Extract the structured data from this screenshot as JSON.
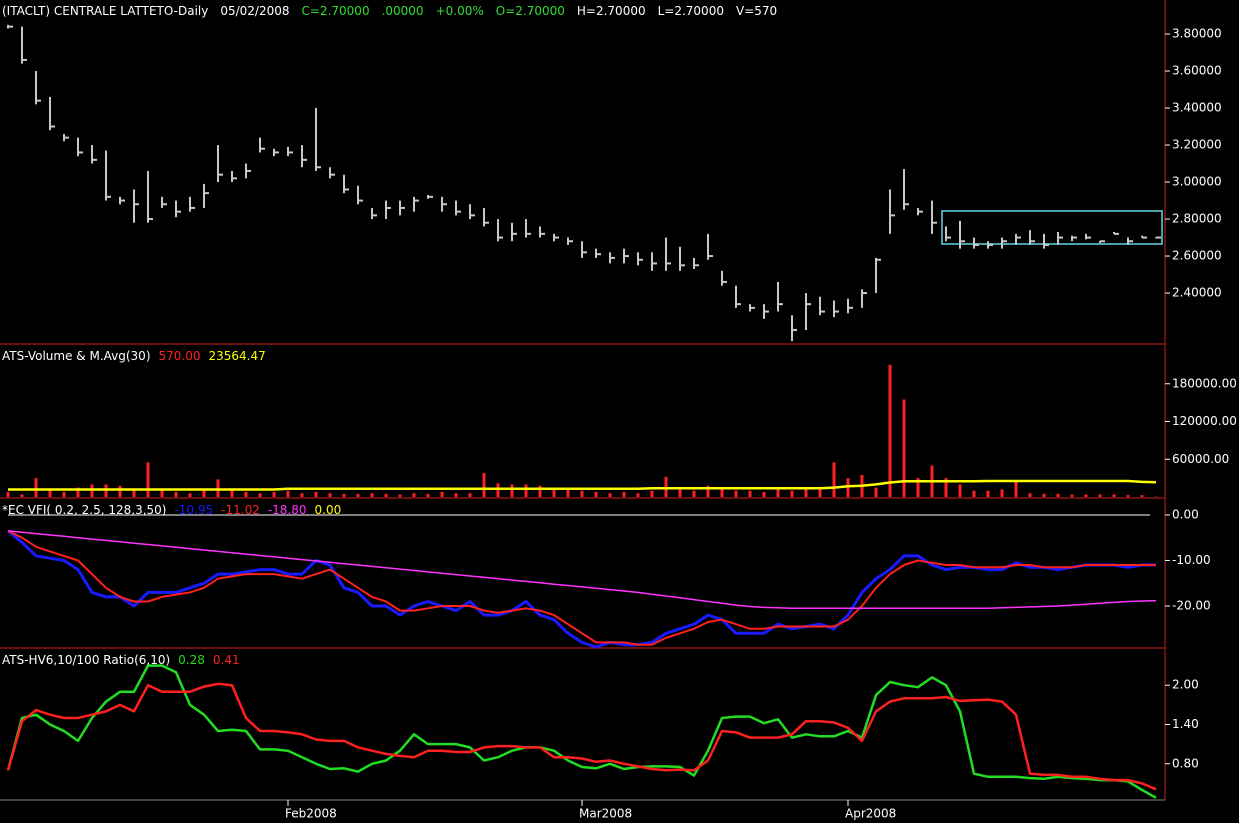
{
  "chart_data": [
    {
      "type": "ohlc",
      "color": "#c8c8c8",
      "header": [
        {
          "text": "(ITACLT) CENTRALE LATTETO-Daily",
          "color": "#ffffff"
        },
        {
          "text": "05/02/2008",
          "color": "#ffffff"
        },
        {
          "text": "C=2.70000",
          "color": "#33dd33"
        },
        {
          "text": ".00000",
          "color": "#33dd33"
        },
        {
          "text": "+0.00%",
          "color": "#33dd33"
        },
        {
          "text": "O=2.70000",
          "color": "#33dd33"
        },
        {
          "text": "H=2.70000",
          "color": "#ffffff"
        },
        {
          "text": "L=2.70000",
          "color": "#ffffff"
        },
        {
          "text": "V=570",
          "color": "#ffffff"
        }
      ],
      "high": [
        3.85,
        3.84,
        3.6,
        3.46,
        3.26,
        3.24,
        3.2,
        3.17,
        2.92,
        2.96,
        3.06,
        2.92,
        2.9,
        2.92,
        2.99,
        3.2,
        3.06,
        3.1,
        3.24,
        3.18,
        3.19,
        3.2,
        3.4,
        3.08,
        3.04,
        2.98,
        2.86,
        2.9,
        2.9,
        2.92,
        2.93,
        2.92,
        2.9,
        2.88,
        2.86,
        2.8,
        2.78,
        2.8,
        2.76,
        2.72,
        2.7,
        2.68,
        2.64,
        2.62,
        2.64,
        2.62,
        2.62,
        2.7,
        2.65,
        2.59,
        2.72,
        2.52,
        2.44,
        2.34,
        2.34,
        2.46,
        2.28,
        2.4,
        2.38,
        2.36,
        2.37,
        2.42,
        2.59,
        2.96,
        3.07,
        2.86,
        2.9,
        2.76,
        2.79,
        2.7,
        2.68,
        2.7,
        2.72,
        2.74,
        2.72,
        2.73,
        2.71,
        2.72,
        2.68,
        2.73,
        2.7,
        2.71,
        2.7
      ],
      "low": [
        3.83,
        3.64,
        3.42,
        3.28,
        3.22,
        3.14,
        3.1,
        2.9,
        2.88,
        2.78,
        2.78,
        2.86,
        2.81,
        2.84,
        2.86,
        3.0,
        3.0,
        3.02,
        3.16,
        3.14,
        3.14,
        3.08,
        3.06,
        3.02,
        2.94,
        2.88,
        2.8,
        2.8,
        2.82,
        2.84,
        2.91,
        2.84,
        2.82,
        2.8,
        2.76,
        2.68,
        2.68,
        2.7,
        2.7,
        2.68,
        2.66,
        2.59,
        2.59,
        2.56,
        2.56,
        2.55,
        2.52,
        2.52,
        2.52,
        2.53,
        2.58,
        2.44,
        2.32,
        2.3,
        2.26,
        2.3,
        2.14,
        2.2,
        2.28,
        2.27,
        2.29,
        2.32,
        2.4,
        2.72,
        2.85,
        2.82,
        2.72,
        2.68,
        2.64,
        2.64,
        2.64,
        2.64,
        2.66,
        2.66,
        2.64,
        2.66,
        2.68,
        2.69,
        2.67,
        2.72,
        2.66,
        2.7,
        2.7
      ],
      "close": [
        3.84,
        3.66,
        3.44,
        3.3,
        3.24,
        3.16,
        3.12,
        2.92,
        2.9,
        2.88,
        2.8,
        2.88,
        2.84,
        2.86,
        2.94,
        3.04,
        3.02,
        3.06,
        3.18,
        3.16,
        3.16,
        3.12,
        3.08,
        3.04,
        2.96,
        2.9,
        2.82,
        2.86,
        2.86,
        2.9,
        2.92,
        2.88,
        2.84,
        2.82,
        2.78,
        2.7,
        2.72,
        2.72,
        2.72,
        2.7,
        2.68,
        2.62,
        2.61,
        2.59,
        2.6,
        2.58,
        2.56,
        2.56,
        2.55,
        2.55,
        2.6,
        2.46,
        2.34,
        2.32,
        2.3,
        2.34,
        2.2,
        2.34,
        2.3,
        2.3,
        2.32,
        2.4,
        2.58,
        2.82,
        2.88,
        2.84,
        2.78,
        2.7,
        2.68,
        2.66,
        2.66,
        2.68,
        2.7,
        2.68,
        2.66,
        2.7,
        2.7,
        2.7,
        2.68,
        2.72,
        2.68,
        2.7,
        2.7
      ],
      "ylim": [
        2.13,
        3.984
      ],
      "yticks": [
        {
          "value": 2.4,
          "label": "2.40000"
        },
        {
          "value": 2.6,
          "label": "2.60000"
        },
        {
          "value": 2.8,
          "label": "2.80000"
        },
        {
          "value": 3.0,
          "label": "3.00000"
        },
        {
          "value": 3.2,
          "label": "3.20000"
        },
        {
          "value": 3.4,
          "label": "3.40000"
        },
        {
          "value": 3.6,
          "label": "3.60000"
        },
        {
          "value": 3.8,
          "label": "3.80000"
        }
      ]
    },
    {
      "type": "volume",
      "title": "ATS-Volume & M.Avg(30)",
      "series": [
        {
          "kind": "bar",
          "legend": "570.00",
          "color": "#ff2020",
          "values": [
            8000,
            4000,
            30000,
            12000,
            8000,
            15000,
            20000,
            20000,
            18000,
            12000,
            55000,
            12000,
            8000,
            6000,
            10000,
            28000,
            12000,
            8000,
            6000,
            8000,
            10000,
            6000,
            8000,
            6000,
            5000,
            5000,
            6000,
            5000,
            4000,
            6000,
            5000,
            8000,
            6000,
            6000,
            38000,
            22000,
            20000,
            20000,
            18000,
            15000,
            12000,
            10000,
            8000,
            6000,
            8000,
            6000,
            10000,
            32000,
            12000,
            10000,
            18000,
            15000,
            10000,
            10000,
            8000,
            12000,
            10000,
            15000,
            12000,
            55000,
            30000,
            35000,
            15000,
            210000,
            155000,
            30000,
            50000,
            30000,
            20000,
            10000,
            10000,
            12000,
            25000,
            6000,
            5000,
            5000,
            4000,
            4000,
            4000,
            4000,
            3000,
            3000,
            570
          ]
        },
        {
          "kind": "line",
          "legend": "23564.47",
          "color": "#ffff00",
          "values": [
            12000,
            12000,
            12000,
            12000,
            12000,
            12000,
            12000,
            12000,
            12000,
            12000,
            12000,
            12000,
            12000,
            12000,
            12000,
            12000,
            12000,
            12000,
            12000,
            12000,
            13000,
            13000,
            13000,
            13000,
            13000,
            13000,
            13000,
            13000,
            13000,
            13000,
            13000,
            13000,
            13000,
            13000,
            13000,
            13000,
            13000,
            13000,
            13000,
            13000,
            13000,
            13000,
            13000,
            13000,
            13000,
            13000,
            14000,
            14000,
            14000,
            14000,
            14000,
            14000,
            14000,
            14000,
            14000,
            14000,
            14000,
            14000,
            14000,
            15000,
            17000,
            18000,
            20000,
            23000,
            25000,
            25000,
            25000,
            25000,
            25000,
            25000,
            25500,
            25500,
            25500,
            25500,
            25500,
            25500,
            25500,
            25500,
            25500,
            25500,
            25500,
            24000,
            23564.47
          ]
        }
      ],
      "ylim": [
        0,
        241600
      ],
      "yticks": [
        {
          "value": 60000,
          "label": "60000.00"
        },
        {
          "value": 120000,
          "label": "120000.00"
        },
        {
          "value": 180000,
          "label": "180000.00"
        }
      ]
    },
    {
      "type": "line",
      "title": "*EC VFI( 0.2, 2.5, 128,3,50)",
      "series": [
        {
          "legend": "-10.95",
          "color": "#1a1aff",
          "width": 3,
          "values": [
            -3.5,
            -6,
            -9,
            -9.5,
            -10,
            -12,
            -17,
            -18,
            -18,
            -20,
            -17,
            -17,
            -17,
            -16,
            -15,
            -13,
            -13,
            -12.5,
            -12,
            -12,
            -13,
            -13,
            -10,
            -11,
            -16,
            -17,
            -20,
            -20,
            -22,
            -20,
            -19,
            -20,
            -21,
            -19,
            -22,
            -22,
            -21,
            -19,
            -22,
            -23,
            -26,
            -28,
            -29,
            -28,
            -28.5,
            -28.5,
            -28,
            -26,
            -25,
            -24,
            -22,
            -23,
            -26,
            -26,
            -26,
            -24,
            -25,
            -24.5,
            -24,
            -25,
            -22,
            -17,
            -14,
            -12,
            -9,
            -9,
            -11,
            -12,
            -11.5,
            -11.5,
            -12,
            -12,
            -10.5,
            -11.5,
            -11.5,
            -12,
            -11.5,
            -11,
            -11,
            -11,
            -11.5,
            -11,
            -10.95
          ]
        },
        {
          "legend": "-11.02",
          "color": "#ff2020",
          "width": 2,
          "values": [
            -3.5,
            -5,
            -7,
            -8,
            -9,
            -10,
            -13,
            -16,
            -18,
            -19,
            -19,
            -18,
            -17.5,
            -17,
            -16,
            -14,
            -13.5,
            -13,
            -13,
            -13,
            -13.5,
            -14,
            -13,
            -12,
            -14,
            -16,
            -18,
            -19,
            -21,
            -21,
            -20.5,
            -20,
            -20,
            -20,
            -21,
            -21.5,
            -21,
            -20.5,
            -21,
            -22,
            -24,
            -26,
            -28,
            -28,
            -28,
            -28.5,
            -28.5,
            -27,
            -26,
            -25,
            -23.5,
            -23,
            -24,
            -25,
            -25,
            -24.5,
            -24.5,
            -24.5,
            -24.5,
            -24.5,
            -23,
            -20,
            -16,
            -13,
            -11,
            -10,
            -10.5,
            -11,
            -11,
            -11.5,
            -11.5,
            -11.5,
            -11,
            -11,
            -11.5,
            -11.5,
            -11.5,
            -11,
            -11,
            -11,
            -11,
            -11,
            -11.02
          ]
        },
        {
          "legend": "-18.80",
          "color": "#ff33ff",
          "width": 1.5,
          "values": [
            -3.5,
            -3.8,
            -4.1,
            -4.4,
            -4.7,
            -5,
            -5.3,
            -5.6,
            -5.9,
            -6.2,
            -6.5,
            -6.8,
            -7.1,
            -7.4,
            -7.7,
            -8,
            -8.3,
            -8.6,
            -8.9,
            -9.2,
            -9.5,
            -9.8,
            -10.1,
            -10.4,
            -10.7,
            -11,
            -11.3,
            -11.6,
            -11.9,
            -12.2,
            -12.5,
            -12.8,
            -13.1,
            -13.4,
            -13.7,
            -14,
            -14.3,
            -14.6,
            -14.9,
            -15.2,
            -15.5,
            -15.8,
            -16.1,
            -16.4,
            -16.7,
            -17,
            -17.4,
            -17.8,
            -18.2,
            -18.6,
            -19,
            -19.4,
            -19.8,
            -20.1,
            -20.3,
            -20.4,
            -20.5,
            -20.5,
            -20.5,
            -20.5,
            -20.5,
            -20.5,
            -20.5,
            -20.5,
            -20.5,
            -20.5,
            -20.5,
            -20.5,
            -20.5,
            -20.5,
            -20.5,
            -20.4,
            -20.3,
            -20.2,
            -20.1,
            -20,
            -19.8,
            -19.6,
            -19.4,
            -19.2,
            -19,
            -18.9,
            -18.8
          ]
        }
      ],
      "level": {
        "value": 0,
        "label": "0.00",
        "color": "#ffff00",
        "line_color": "#ffffff"
      },
      "ylim": [
        -29,
        3.5
      ],
      "yticks": [
        {
          "value": -20,
          "label": "-20.00"
        },
        {
          "value": -10,
          "label": "-10.00"
        },
        {
          "value": 0,
          "label": "0.00"
        }
      ]
    },
    {
      "type": "line",
      "title": "ATS-HV6,10/100 Ratio(6,10)",
      "series": [
        {
          "legend": "0.28",
          "color": "#22dd22",
          "width": 2.5,
          "values": [
            0.7,
            1.5,
            1.55,
            1.4,
            1.3,
            1.15,
            1.5,
            1.75,
            1.9,
            1.9,
            2.3,
            2.3,
            2.2,
            1.7,
            1.55,
            1.3,
            1.32,
            1.3,
            1.02,
            1.02,
            1.0,
            0.9,
            0.8,
            0.72,
            0.73,
            0.68,
            0.8,
            0.85,
            1.0,
            1.25,
            1.1,
            1.1,
            1.1,
            1.05,
            0.85,
            0.9,
            1.0,
            1.05,
            1.05,
            1.0,
            0.85,
            0.75,
            0.73,
            0.8,
            0.72,
            0.75,
            0.76,
            0.76,
            0.75,
            0.62,
            1.0,
            1.5,
            1.52,
            1.52,
            1.42,
            1.48,
            1.2,
            1.25,
            1.22,
            1.22,
            1.3,
            1.2,
            1.85,
            2.05,
            2.0,
            1.97,
            2.12,
            2.0,
            1.6,
            0.65,
            0.6,
            0.6,
            0.6,
            0.58,
            0.57,
            0.6,
            0.58,
            0.57,
            0.55,
            0.55,
            0.53,
            0.4,
            0.28
          ]
        },
        {
          "legend": "0.41",
          "color": "#ff2020",
          "width": 2.5,
          "values": [
            0.7,
            1.45,
            1.62,
            1.55,
            1.5,
            1.5,
            1.55,
            1.6,
            1.7,
            1.6,
            2.0,
            1.9,
            1.9,
            1.9,
            1.98,
            2.02,
            2.0,
            1.5,
            1.3,
            1.3,
            1.28,
            1.25,
            1.17,
            1.15,
            1.15,
            1.05,
            1.0,
            0.95,
            0.92,
            0.9,
            1.0,
            1.0,
            0.98,
            0.98,
            1.05,
            1.07,
            1.07,
            1.05,
            1.05,
            0.9,
            0.9,
            0.88,
            0.83,
            0.85,
            0.8,
            0.76,
            0.72,
            0.7,
            0.71,
            0.7,
            0.85,
            1.3,
            1.28,
            1.2,
            1.2,
            1.2,
            1.25,
            1.45,
            1.45,
            1.43,
            1.35,
            1.15,
            1.6,
            1.75,
            1.8,
            1.8,
            1.8,
            1.82,
            1.76,
            1.77,
            1.78,
            1.75,
            1.55,
            0.65,
            0.63,
            0.63,
            0.6,
            0.6,
            0.57,
            0.55,
            0.55,
            0.5,
            0.41
          ]
        }
      ],
      "categories": [
        null,
        null,
        null,
        null,
        null,
        null,
        null,
        null,
        null,
        null,
        null,
        null,
        null,
        null,
        null,
        null,
        null,
        null,
        null,
        null,
        "Feb2008",
        null,
        null,
        null,
        null,
        null,
        null,
        null,
        null,
        null,
        null,
        null,
        null,
        null,
        null,
        null,
        null,
        null,
        null,
        null,
        null,
        "Mar2008",
        null,
        null,
        null,
        null,
        null,
        null,
        null,
        null,
        null,
        null,
        null,
        null,
        null,
        null,
        null,
        null,
        null,
        null,
        "Apr2008",
        null,
        null,
        null,
        null,
        null,
        null,
        null,
        null,
        null,
        null,
        null,
        null,
        null,
        null,
        null,
        null,
        null,
        null,
        null,
        null,
        null,
        null
      ],
      "ylim": [
        0.246,
        2.554
      ],
      "yticks": [
        {
          "value": 0.8,
          "label": "0.80"
        },
        {
          "value": 1.4,
          "label": "1.40"
        },
        {
          "value": 2.0,
          "label": "2.00"
        }
      ]
    }
  ]
}
